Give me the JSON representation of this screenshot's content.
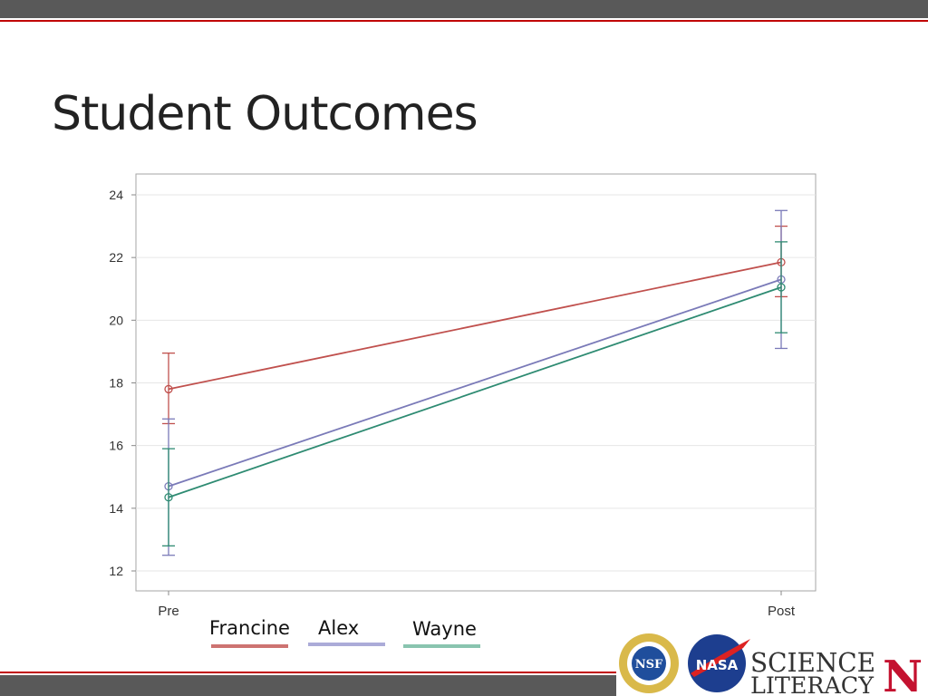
{
  "slide": {
    "title": "Student Outcomes"
  },
  "legend": [
    {
      "name": "Francine",
      "color": "#c0504d"
    },
    {
      "name": "Alex",
      "color": "#8888c8"
    },
    {
      "name": "Wayne",
      "color": "#3a9c7a"
    }
  ],
  "logos": {
    "nsf": "NSF",
    "nasa": "NASA",
    "science_literacy_line1": "SCIENCE",
    "science_literacy_line2": "LITERACY",
    "university": "N"
  },
  "chart_data": {
    "type": "line",
    "categories": [
      "Pre",
      "Post"
    ],
    "ylim": [
      12,
      24
    ],
    "yticks": [
      12,
      14,
      16,
      18,
      20,
      22,
      24
    ],
    "grid": true,
    "series": [
      {
        "name": "Francine",
        "color": "#c0504d",
        "values": [
          17.8,
          21.85
        ],
        "error_low": [
          16.7,
          20.75
        ],
        "error_high": [
          18.95,
          23.0
        ]
      },
      {
        "name": "Alex",
        "color": "#7a7ab8",
        "values": [
          14.7,
          21.3
        ],
        "error_low": [
          12.5,
          19.1
        ],
        "error_high": [
          16.85,
          23.5
        ]
      },
      {
        "name": "Wayne",
        "color": "#2e8b72",
        "values": [
          14.35,
          21.05
        ],
        "error_low": [
          12.8,
          19.6
        ],
        "error_high": [
          15.9,
          22.5
        ]
      }
    ]
  }
}
